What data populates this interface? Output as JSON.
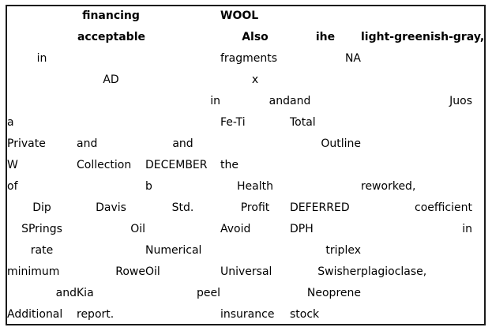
{
  "table": {
    "rows": [
      [
        "",
        "financing",
        "",
        "WOOL",
        "",
        ""
      ],
      [
        "",
        "acceptable",
        "",
        "Also",
        "ihe",
        "light-greenish-gray,"
      ],
      [
        "in",
        "",
        "",
        "fragments",
        "NA",
        ""
      ],
      [
        "",
        "AD",
        "",
        "x",
        "",
        ""
      ],
      [
        "",
        "",
        "in",
        "and",
        "and",
        "Juos"
      ],
      [
        "a",
        "",
        "",
        "Fe-Ti",
        "Total",
        ""
      ],
      [
        "Private",
        "and",
        "and",
        "",
        "Outline",
        ""
      ],
      [
        "W",
        "Collection",
        "DECEMBER",
        "the",
        "",
        ""
      ],
      [
        "of",
        "",
        "b",
        "Health",
        "",
        "reworked,"
      ],
      [
        "Dip",
        "Davis",
        "Std.",
        "Profit",
        "DEFERRED",
        "coefficient"
      ],
      [
        "SPrings",
        "Oil",
        "",
        "Avoid",
        "DPH",
        "in"
      ],
      [
        "rate",
        "",
        "Numerical",
        "",
        "triplex",
        ""
      ],
      [
        "minimum",
        "Rowe",
        "Oil",
        "Universal",
        "Swisher",
        "plagioclase,"
      ],
      [
        "and",
        "Kia",
        "peel",
        "",
        "Neoprene",
        ""
      ],
      [
        "Additional",
        "report.",
        "",
        "insurance",
        "stock",
        ""
      ]
    ]
  }
}
